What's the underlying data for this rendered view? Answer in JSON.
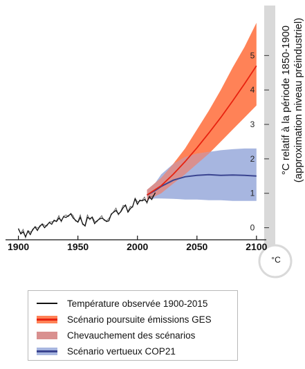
{
  "chart_data": {
    "type": "line",
    "x_ticks": [
      1900,
      1950,
      2000,
      2050,
      2100
    ],
    "y_ticks": [
      0,
      1,
      2,
      3,
      4,
      5
    ],
    "xlim": [
      1895,
      2103
    ],
    "ylim": [
      -0.35,
      5.95
    ],
    "ylabel_line1": "°C relatif à la période 1850-1900",
    "ylabel_line2": "(approximation niveau préindustriel)",
    "thermometer_unit": "°C",
    "observed": {
      "x": [
        1900,
        1902,
        1904,
        1906,
        1908,
        1910,
        1912,
        1914,
        1916,
        1918,
        1920,
        1922,
        1924,
        1926,
        1928,
        1930,
        1932,
        1934,
        1936,
        1938,
        1940,
        1942,
        1944,
        1946,
        1948,
        1950,
        1952,
        1954,
        1956,
        1958,
        1960,
        1962,
        1964,
        1966,
        1968,
        1970,
        1972,
        1974,
        1976,
        1978,
        1980,
        1982,
        1984,
        1986,
        1988,
        1990,
        1992,
        1994,
        1996,
        1998,
        2000,
        2002,
        2004,
        2006,
        2008,
        2010,
        2012,
        2015
      ],
      "y": [
        -0.02,
        -0.18,
        -0.12,
        -0.26,
        -0.1,
        -0.2,
        -0.05,
        0.02,
        -0.08,
        0.05,
        0.1,
        0.0,
        0.08,
        0.15,
        0.1,
        0.22,
        0.18,
        0.28,
        0.2,
        0.32,
        0.3,
        0.35,
        0.4,
        0.28,
        0.22,
        0.16,
        0.3,
        0.12,
        0.05,
        0.3,
        0.26,
        0.3,
        0.12,
        0.2,
        0.25,
        0.28,
        0.24,
        0.18,
        0.2,
        0.4,
        0.45,
        0.5,
        0.4,
        0.46,
        0.58,
        0.66,
        0.45,
        0.55,
        0.62,
        0.84,
        0.68,
        0.8,
        0.78,
        0.82,
        0.74,
        0.9,
        0.82,
        1.02
      ]
    },
    "series": [
      {
        "name": "Scénario poursuite émissions GES",
        "x": [
          2008,
          2020,
          2030,
          2040,
          2050,
          2060,
          2070,
          2080,
          2090,
          2100
        ],
        "y": [
          0.95,
          1.22,
          1.55,
          1.92,
          2.32,
          2.75,
          3.2,
          3.68,
          4.18,
          4.7
        ],
        "low": [
          0.8,
          1.0,
          1.28,
          1.55,
          1.85,
          2.15,
          2.5,
          2.85,
          3.2,
          3.55
        ],
        "high": [
          1.1,
          1.45,
          1.85,
          2.3,
          2.85,
          3.4,
          4.0,
          4.65,
          5.25,
          5.95
        ]
      },
      {
        "name": "Scénario vertueux COP21",
        "x": [
          2008,
          2015,
          2020,
          2030,
          2040,
          2050,
          2060,
          2070,
          2080,
          2090,
          2100
        ],
        "y": [
          0.95,
          1.08,
          1.2,
          1.38,
          1.48,
          1.52,
          1.54,
          1.52,
          1.53,
          1.52,
          1.5
        ],
        "low": [
          0.82,
          0.85,
          0.85,
          0.84,
          0.82,
          0.82,
          0.8,
          0.8,
          0.78,
          0.78,
          0.78
        ],
        "high": [
          1.1,
          1.3,
          1.55,
          1.85,
          2.05,
          2.15,
          2.2,
          2.25,
          2.28,
          2.3,
          2.3
        ]
      }
    ],
    "legend": [
      {
        "label": "Température observée 1900-2015",
        "color": "#111111"
      },
      {
        "label": "Scénario poursuite émissions GES",
        "color": "#ff8257"
      },
      {
        "label": "Chevauchement des scénarios",
        "color": "#d9908f"
      },
      {
        "label": "Scénario vertueux COP21",
        "color": "#a7b6e0"
      }
    ],
    "colors": {
      "observed": "#111111",
      "ges_band": "#ff8257",
      "ges_line": "#e8220f",
      "cop21_band": "#a7b6e0",
      "cop21_line": "#3a4490",
      "overlap": "#d9908f",
      "thermometer": "#d9d9d9"
    },
    "grid": false,
    "legend_position": "bottom"
  }
}
